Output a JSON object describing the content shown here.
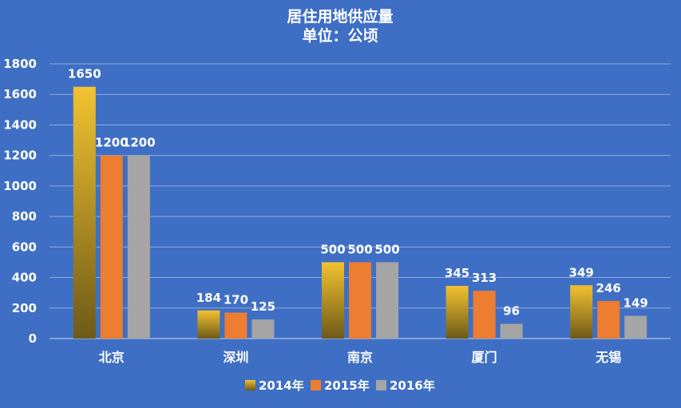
{
  "chart_data": {
    "type": "bar",
    "title": "居住用地供应量",
    "subtitle": "单位：公顷",
    "categories": [
      "北京",
      "深圳",
      "南京",
      "厦门",
      "无锡"
    ],
    "series": [
      {
        "name": "2014年",
        "values": [
          1650,
          184,
          500,
          345,
          349
        ],
        "color": "#f2c230",
        "color_dark": "#6e5a18"
      },
      {
        "name": "2015年",
        "values": [
          1200,
          170,
          500,
          313,
          246
        ],
        "color": "#ed7d31"
      },
      {
        "name": "2016年",
        "values": [
          1200,
          125,
          500,
          96,
          149
        ],
        "color": "#a5a5a5"
      }
    ],
    "yticks": [
      0,
      200,
      400,
      600,
      800,
      1000,
      1200,
      1400,
      1600,
      1800
    ],
    "ylim": [
      0,
      1800
    ],
    "grid": true,
    "legend_position": "bottom"
  }
}
